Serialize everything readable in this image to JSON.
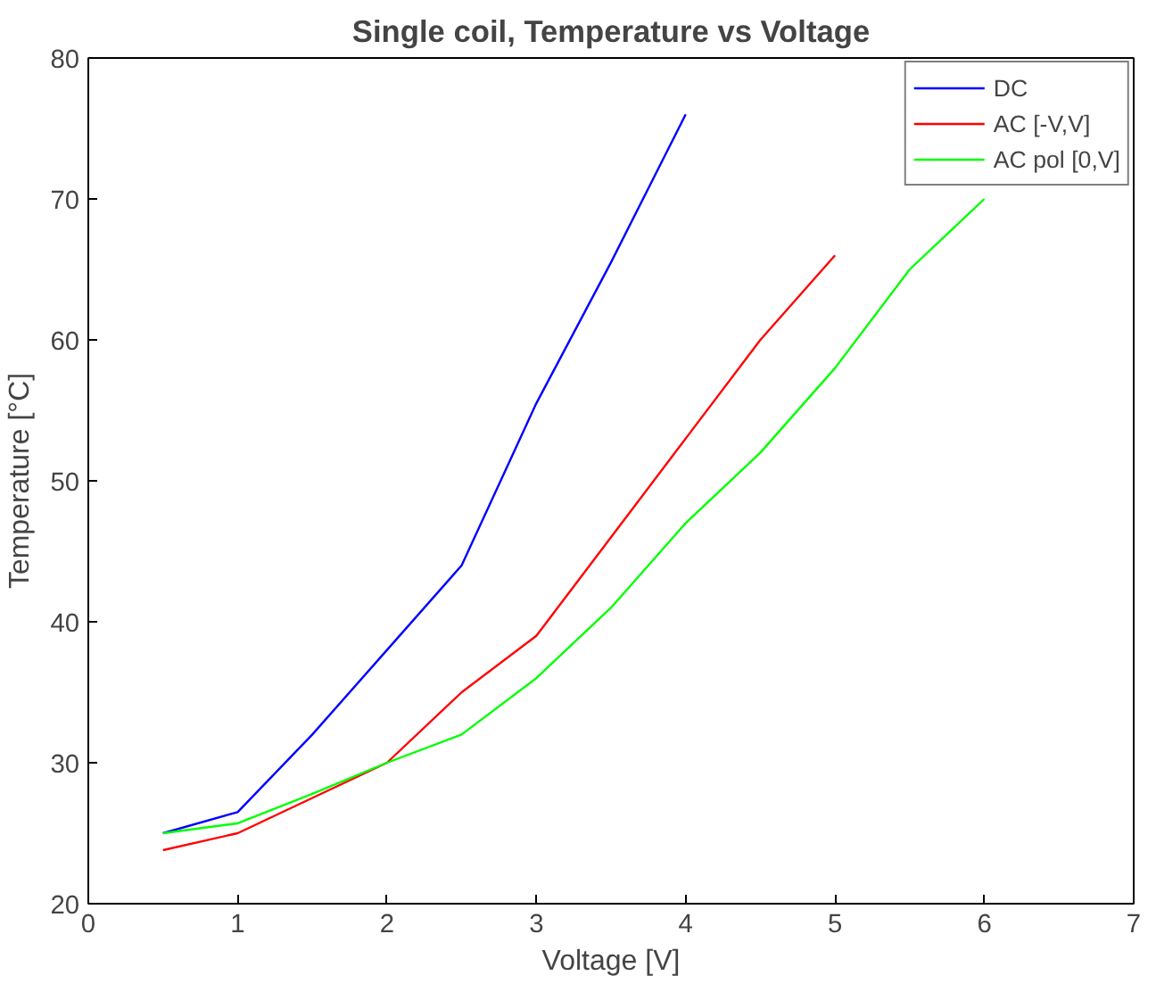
{
  "chart_data": {
    "type": "line",
    "title": "Single coil, Temperature vs Voltage",
    "xlabel": "Voltage [V]",
    "ylabel": "Temperature [°C]",
    "x": [
      0.5,
      1,
      1.5,
      2,
      2.5,
      3,
      3.5,
      4,
      4.5,
      5,
      5.5,
      6
    ],
    "series": [
      {
        "name": "DC",
        "color": "#0000ff",
        "values": [
          25,
          26.5,
          32,
          38,
          44,
          55.5,
          65.5,
          76,
          null,
          null,
          null,
          null
        ]
      },
      {
        "name": "AC [-V,V]",
        "color": "#ff0000",
        "values": [
          23.8,
          25,
          27.5,
          30,
          35,
          39,
          46,
          53,
          60,
          66,
          null,
          null
        ]
      },
      {
        "name": "AC pol [0,V]",
        "color": "#00ff00",
        "values": [
          25,
          25.7,
          27.8,
          30,
          32,
          36,
          41,
          47,
          52,
          58,
          65,
          70
        ]
      }
    ],
    "xlim": [
      0,
      7
    ],
    "xticks": [
      0,
      1,
      2,
      3,
      4,
      5,
      6,
      7
    ],
    "ylim": [
      20,
      80
    ],
    "yticks": [
      20,
      30,
      40,
      50,
      60,
      70,
      80
    ],
    "grid": false,
    "legend": "top right",
    "line_style": "solid",
    "marker": "none"
  }
}
